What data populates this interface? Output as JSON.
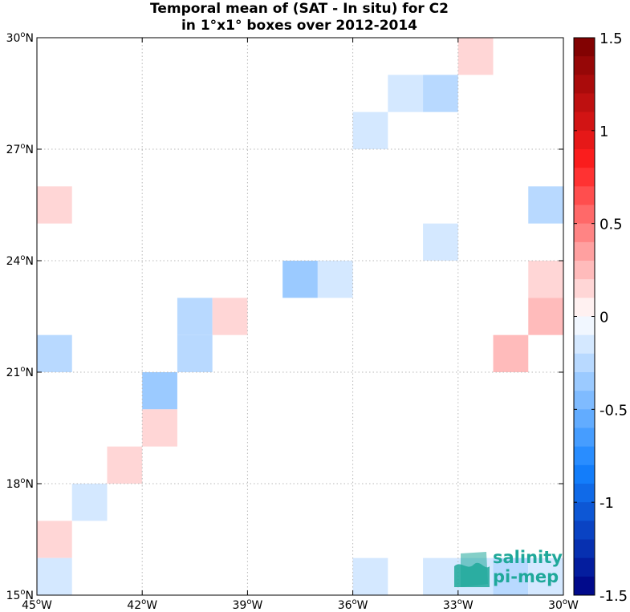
{
  "chart_data": {
    "type": "heatmap",
    "title_line1": "Temporal mean of (SAT - In situ) for C2",
    "title_line2": "in 1°x1° boxes over 2012-2014",
    "xlim": [
      -45,
      -30
    ],
    "ylim": [
      15,
      30
    ],
    "x_ticks": [
      {
        "value": -45,
        "deg": "45",
        "hemi": "W"
      },
      {
        "value": -42,
        "deg": "42",
        "hemi": "W"
      },
      {
        "value": -39,
        "deg": "39",
        "hemi": "W"
      },
      {
        "value": -36,
        "deg": "36",
        "hemi": "W"
      },
      {
        "value": -33,
        "deg": "33",
        "hemi": "W"
      },
      {
        "value": -30,
        "deg": "30",
        "hemi": "W"
      }
    ],
    "y_ticks": [
      {
        "value": 15,
        "deg": "15",
        "hemi": "N"
      },
      {
        "value": 18,
        "deg": "18",
        "hemi": "N"
      },
      {
        "value": 21,
        "deg": "21",
        "hemi": "N"
      },
      {
        "value": 24,
        "deg": "24",
        "hemi": "N"
      },
      {
        "value": 27,
        "deg": "27",
        "hemi": "N"
      },
      {
        "value": 30,
        "deg": "30",
        "hemi": "N"
      }
    ],
    "grid": true,
    "colorbar": {
      "min": -1.5,
      "max": 1.5,
      "levels": 30,
      "ticks": [
        {
          "value": 1.5,
          "label": "1.5"
        },
        {
          "value": 1.0,
          "label": "1"
        },
        {
          "value": 0.5,
          "label": "0.5"
        },
        {
          "value": 0.0,
          "label": "0"
        },
        {
          "value": -0.5,
          "label": "-0.5"
        },
        {
          "value": -1.0,
          "label": "-1"
        },
        {
          "value": -1.5,
          "label": "-1.5"
        }
      ]
    },
    "cells": [
      {
        "lon": -32.5,
        "lat": 29.5,
        "value": 0.15
      },
      {
        "lon": -34.5,
        "lat": 28.5,
        "value": -0.15
      },
      {
        "lon": -33.5,
        "lat": 28.5,
        "value": -0.25
      },
      {
        "lon": -35.5,
        "lat": 27.5,
        "value": -0.15
      },
      {
        "lon": -44.5,
        "lat": 25.5,
        "value": 0.15
      },
      {
        "lon": -30.5,
        "lat": 25.5,
        "value": -0.25
      },
      {
        "lon": -33.5,
        "lat": 24.5,
        "value": -0.12
      },
      {
        "lon": -37.5,
        "lat": 23.5,
        "value": -0.35
      },
      {
        "lon": -36.5,
        "lat": 23.5,
        "value": -0.15
      },
      {
        "lon": -30.5,
        "lat": 23.5,
        "value": 0.15
      },
      {
        "lon": -40.5,
        "lat": 22.5,
        "value": -0.22
      },
      {
        "lon": -39.5,
        "lat": 22.5,
        "value": 0.15
      },
      {
        "lon": -30.5,
        "lat": 22.5,
        "value": 0.25
      },
      {
        "lon": -44.5,
        "lat": 21.5,
        "value": -0.22
      },
      {
        "lon": -40.5,
        "lat": 21.5,
        "value": -0.22
      },
      {
        "lon": -31.5,
        "lat": 21.5,
        "value": 0.25
      },
      {
        "lon": -41.5,
        "lat": 20.5,
        "value": -0.35
      },
      {
        "lon": -41.5,
        "lat": 19.5,
        "value": 0.15
      },
      {
        "lon": -42.5,
        "lat": 18.5,
        "value": 0.15
      },
      {
        "lon": -43.5,
        "lat": 17.5,
        "value": -0.15
      },
      {
        "lon": -44.5,
        "lat": 16.5,
        "value": 0.15
      },
      {
        "lon": -44.5,
        "lat": 15.5,
        "value": -0.12
      },
      {
        "lon": -35.5,
        "lat": 15.5,
        "value": -0.15
      },
      {
        "lon": -33.5,
        "lat": 15.5,
        "value": -0.12
      },
      {
        "lon": -32.5,
        "lat": 15.5,
        "value": -0.12
      },
      {
        "lon": -31.5,
        "lat": 15.5,
        "value": -0.22
      },
      {
        "lon": -30.5,
        "lat": 15.5,
        "value": -0.15
      }
    ]
  },
  "logo": {
    "line1": "salinity",
    "line2": "pi-mep",
    "color": "#1fa89a"
  }
}
